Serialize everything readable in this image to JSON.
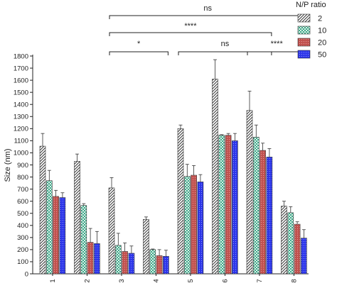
{
  "chart_data": {
    "type": "bar",
    "title": "",
    "xlabel": "",
    "ylabel": "Size (nm)",
    "ylim": [
      0,
      1800
    ],
    "ytick_step": 100,
    "grid": false,
    "categories": [
      "1",
      "2",
      "3",
      "4",
      "5",
      "6",
      "7",
      "8"
    ],
    "legend": {
      "title": "N/P ratio",
      "placement": "top-right"
    },
    "series": [
      {
        "name": "2",
        "pattern": "diagonal-hatch",
        "color": "#d9d9d9",
        "values": [
          1055,
          930,
          710,
          450,
          1200,
          1610,
          1350,
          560
        ],
        "errors": [
          105,
          60,
          85,
          20,
          30,
          160,
          160,
          40
        ]
      },
      {
        "name": "10",
        "pattern": "checker",
        "color": "#3fa88a",
        "values": [
          770,
          565,
          235,
          200,
          805,
          1145,
          1130,
          505
        ],
        "errors": [
          85,
          15,
          100,
          5,
          100,
          5,
          100,
          50
        ]
      },
      {
        "name": "20",
        "pattern": "dots",
        "color": "#c0504d",
        "values": [
          640,
          260,
          185,
          150,
          815,
          1145,
          1020,
          410
        ],
        "errors": [
          50,
          115,
          70,
          50,
          80,
          15,
          60,
          20
        ]
      },
      {
        "name": "50",
        "pattern": "dots",
        "color": "#2b34e8",
        "values": [
          630,
          250,
          170,
          145,
          760,
          1100,
          965,
          295
        ],
        "errors": [
          40,
          100,
          60,
          50,
          60,
          60,
          70,
          70
        ]
      }
    ],
    "significance": [
      {
        "from": "3",
        "to": "8",
        "label": "ns"
      },
      {
        "from": "3",
        "to": "7",
        "label": "****"
      },
      {
        "from": "3",
        "to": "4",
        "label": "*"
      },
      {
        "from": "5",
        "to": "7",
        "label": "ns"
      },
      {
        "from": "7",
        "to": "8",
        "label": "****"
      }
    ]
  }
}
